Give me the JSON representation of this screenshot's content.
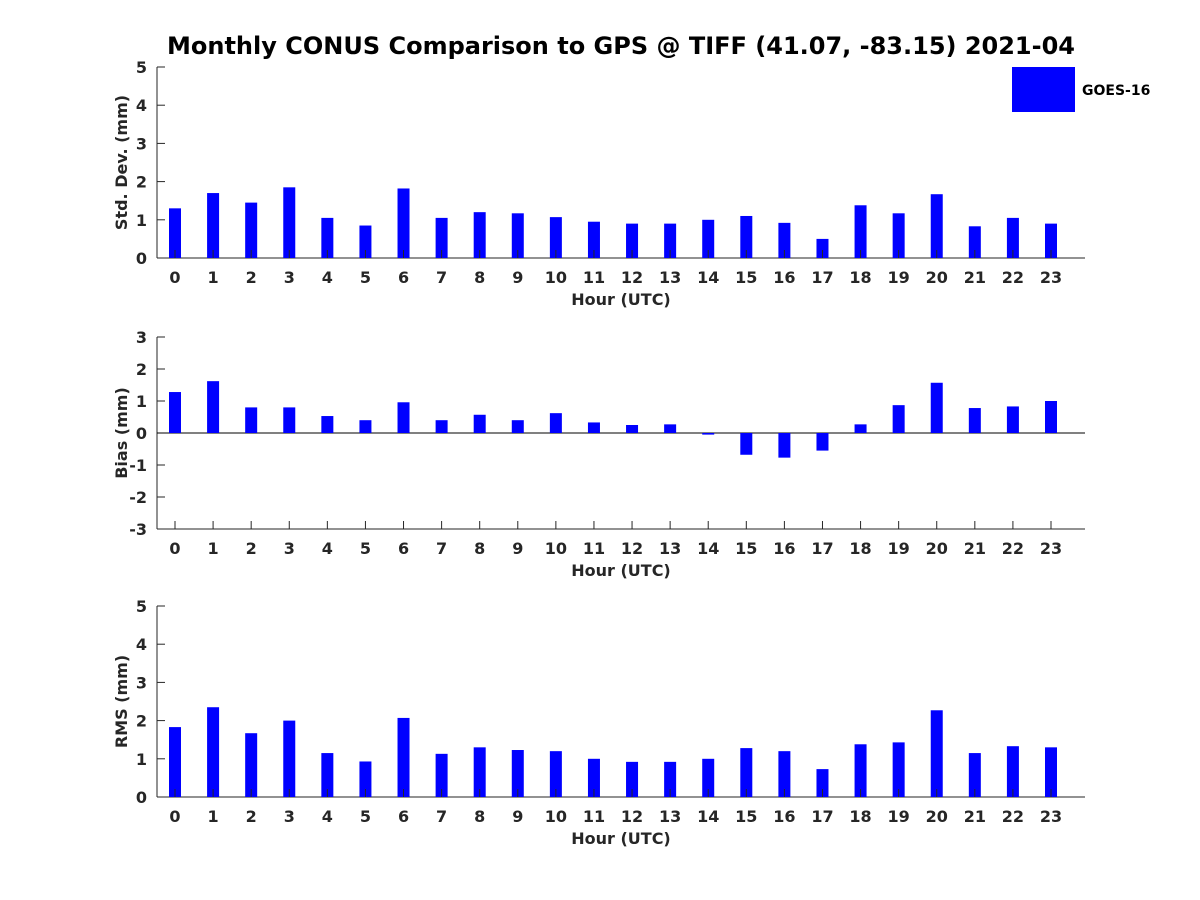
{
  "figure": {
    "title": "Monthly CONUS Comparison to GPS @ TIFF (41.07, -83.15) 2021-04",
    "legend_label": "GOES-16",
    "series_color": "#0000ff"
  },
  "chart_data": [
    {
      "type": "bar",
      "title": "Monthly CONUS Comparison to GPS @ TIFF (41.07, -83.15) 2021-04",
      "xlabel": "Hour (UTC)",
      "ylabel": "Std. Dev. (mm)",
      "categories": [
        "0",
        "1",
        "2",
        "3",
        "4",
        "5",
        "6",
        "7",
        "8",
        "9",
        "10",
        "11",
        "12",
        "13",
        "14",
        "15",
        "16",
        "17",
        "18",
        "19",
        "20",
        "21",
        "22",
        "23"
      ],
      "series": [
        {
          "name": "GOES-16",
          "values": [
            1.3,
            1.7,
            1.45,
            1.85,
            1.05,
            0.85,
            1.82,
            1.05,
            1.2,
            1.17,
            1.07,
            0.95,
            0.9,
            0.9,
            1.0,
            1.1,
            0.92,
            0.5,
            1.38,
            1.17,
            1.67,
            0.83,
            1.05,
            0.9
          ]
        }
      ],
      "ylim": [
        0,
        5
      ],
      "yticks": [
        0,
        1,
        2,
        3,
        4,
        5
      ],
      "legend": "top-right"
    },
    {
      "type": "bar",
      "xlabel": "Hour (UTC)",
      "ylabel": "Bias (mm)",
      "categories": [
        "0",
        "1",
        "2",
        "3",
        "4",
        "5",
        "6",
        "7",
        "8",
        "9",
        "10",
        "11",
        "12",
        "13",
        "14",
        "15",
        "16",
        "17",
        "18",
        "19",
        "20",
        "21",
        "22",
        "23"
      ],
      "series": [
        {
          "name": "GOES-16",
          "values": [
            1.28,
            1.62,
            0.8,
            0.8,
            0.53,
            0.4,
            0.96,
            0.4,
            0.57,
            0.4,
            0.62,
            0.33,
            0.25,
            0.27,
            -0.05,
            -0.68,
            -0.77,
            -0.55,
            0.27,
            0.87,
            1.57,
            0.78,
            0.83,
            1.0
          ]
        }
      ],
      "ylim": [
        -3,
        3
      ],
      "yticks": [
        -3,
        -2,
        -1,
        0,
        1,
        2,
        3
      ],
      "zero_line": true
    },
    {
      "type": "bar",
      "xlabel": "Hour (UTC)",
      "ylabel": "RMS (mm)",
      "categories": [
        "0",
        "1",
        "2",
        "3",
        "4",
        "5",
        "6",
        "7",
        "8",
        "9",
        "10",
        "11",
        "12",
        "13",
        "14",
        "15",
        "16",
        "17",
        "18",
        "19",
        "20",
        "21",
        "22",
        "23"
      ],
      "series": [
        {
          "name": "GOES-16",
          "values": [
            1.83,
            2.35,
            1.67,
            2.0,
            1.15,
            0.93,
            2.07,
            1.13,
            1.3,
            1.23,
            1.2,
            1.0,
            0.92,
            0.92,
            1.0,
            1.28,
            1.2,
            0.73,
            1.38,
            1.43,
            2.27,
            1.15,
            1.33,
            1.3
          ]
        }
      ],
      "ylim": [
        0,
        5
      ],
      "yticks": [
        0,
        1,
        2,
        3,
        4,
        5
      ]
    }
  ]
}
